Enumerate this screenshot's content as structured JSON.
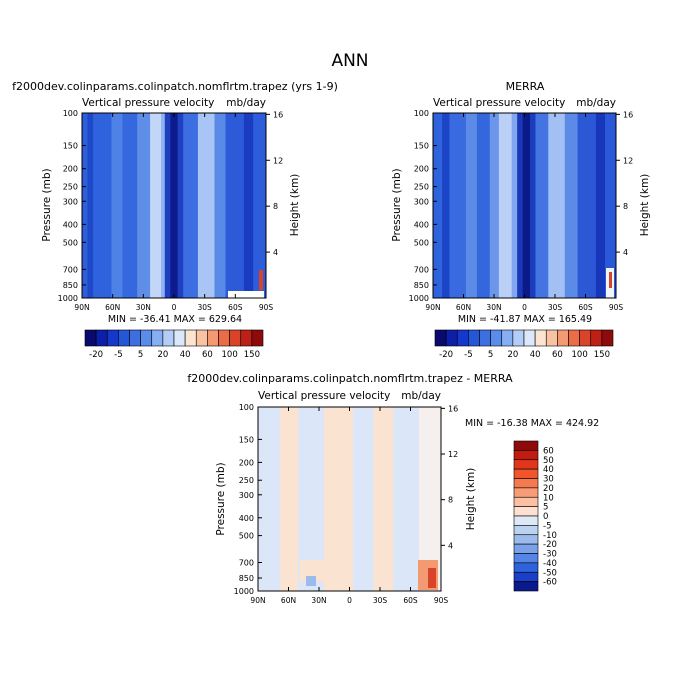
{
  "page_title": "ANN",
  "chart_data": [
    {
      "type": "heatmap",
      "title": "f2000dev.colinparams.colinpatch.nomflrtm.trapez (yrs 1-9)",
      "subtitle_left": "Vertical pressure velocity",
      "subtitle_right": "mb/day",
      "xlabel": "",
      "ylabel": "Pressure (mb)",
      "ylabel_right": "Height (km)",
      "x_tick_labels": [
        "90N",
        "60N",
        "30N",
        "0",
        "30S",
        "60S",
        "90S"
      ],
      "x_values": [
        90,
        60,
        30,
        0,
        -30,
        -60,
        -90
      ],
      "xlim": [
        90,
        -90
      ],
      "y_tick_labels": [
        "100",
        "150",
        "200",
        "250",
        "300",
        "400",
        "500",
        "700",
        "850",
        "1000"
      ],
      "y_values": [
        100,
        150,
        200,
        250,
        300,
        400,
        500,
        700,
        850,
        1000
      ],
      "ylim": [
        1000,
        100
      ],
      "y_scale": "log",
      "y_right_tick_labels": [
        "4",
        "8",
        "12",
        "16"
      ],
      "stats": "MIN = -36.41   MAX = 629.64",
      "min": -36.41,
      "max": 629.64,
      "colorbar_labels": [
        "-20",
        "-5",
        "5",
        "20",
        "40",
        "60",
        "100",
        "150"
      ],
      "colorbar_colors": [
        "#0a0a6e",
        "#0d1fa8",
        "#1438cc",
        "#2456d8",
        "#3d6fe0",
        "#5a8cea",
        "#86aef2",
        "#b4cdf7",
        "#dbe7fb",
        "#fbe4d2",
        "#f9c2a3",
        "#f39a73",
        "#ea6d48",
        "#d9432a",
        "#bc2016",
        "#8e0b0b"
      ],
      "colorbar_orientation": "horizontal"
    },
    {
      "type": "heatmap",
      "title": "MERRA",
      "subtitle_left": "Vertical pressure velocity",
      "subtitle_right": "mb/day",
      "ylabel": "Pressure (mb)",
      "ylabel_right": "Height (km)",
      "x_tick_labels": [
        "90N",
        "60N",
        "30N",
        "0",
        "30S",
        "60S",
        "90S"
      ],
      "y_tick_labels": [
        "100",
        "150",
        "200",
        "250",
        "300",
        "400",
        "500",
        "700",
        "850",
        "1000"
      ],
      "y_right_tick_labels": [
        "4",
        "8",
        "12",
        "16"
      ],
      "stats": "MIN = -41.87   MAX = 165.49",
      "min": -41.87,
      "max": 165.49,
      "colorbar_labels": [
        "-20",
        "-5",
        "5",
        "20",
        "40",
        "60",
        "100",
        "150"
      ],
      "colorbar_orientation": "horizontal"
    },
    {
      "type": "heatmap",
      "title": "f2000dev.colinparams.colinpatch.nomflrtm.trapez - MERRA",
      "subtitle_left": "Vertical pressure velocity",
      "subtitle_right": "mb/day",
      "ylabel": "Pressure (mb)",
      "ylabel_right": "Height (km)",
      "x_tick_labels": [
        "90N",
        "60N",
        "30N",
        "0",
        "30S",
        "60S",
        "90S"
      ],
      "y_tick_labels": [
        "100",
        "150",
        "200",
        "250",
        "300",
        "400",
        "500",
        "700",
        "850",
        "1000"
      ],
      "y_right_tick_labels": [
        "4",
        "8",
        "12",
        "16"
      ],
      "stats": "MIN = -16.38   MAX = 424.92",
      "min": -16.38,
      "max": 424.92,
      "colorbar_labels": [
        "60",
        "50",
        "40",
        "30",
        "20",
        "10",
        "5",
        "0",
        "-5",
        "-10",
        "-20",
        "-30",
        "-40",
        "-50",
        "-60"
      ],
      "colorbar_colors": [
        "#8e0b0b",
        "#c21c12",
        "#e0361c",
        "#f0552c",
        "#f57a4f",
        "#f89c78",
        "#fbbfa3",
        "#fde0cf",
        "#dde9f7",
        "#bcd2f1",
        "#9bbbed",
        "#7aa2ea",
        "#5585e6",
        "#2f63de",
        "#1a3fc8",
        "#0a1a8c"
      ],
      "colorbar_orientation": "vertical"
    }
  ]
}
